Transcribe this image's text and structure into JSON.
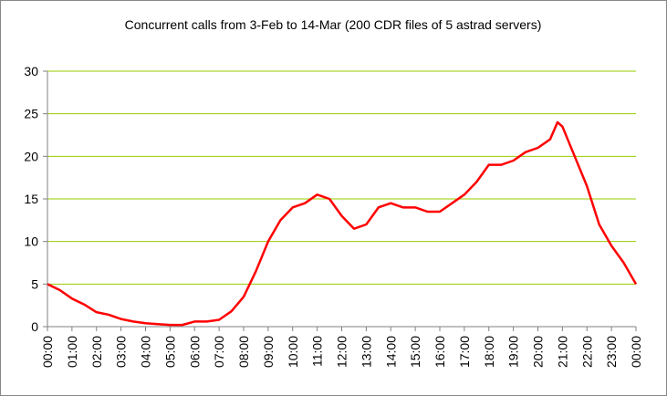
{
  "chart_data": {
    "type": "line",
    "title": "Concurrent calls from 3-Feb to 14-Mar (200 CDR files of 5 astrad servers)",
    "x": [
      0,
      0.5,
      1,
      1.5,
      2,
      2.5,
      3,
      3.5,
      4,
      4.5,
      5,
      5.5,
      6,
      6.5,
      7,
      7.5,
      8,
      8.5,
      9,
      9.5,
      10,
      10.5,
      11,
      11.5,
      12,
      12.5,
      13,
      13.5,
      14,
      14.5,
      15,
      15.5,
      16,
      16.5,
      17,
      17.5,
      18,
      18.5,
      19,
      19.5,
      20,
      20.5,
      20.8,
      21,
      21.5,
      22,
      22.5,
      23,
      23.5,
      24
    ],
    "series": [
      {
        "color": "#ff0000",
        "values": [
          5.0,
          4.3,
          3.3,
          2.6,
          1.7,
          1.4,
          0.9,
          0.6,
          0.4,
          0.3,
          0.2,
          0.2,
          0.6,
          0.6,
          0.8,
          1.8,
          3.5,
          6.5,
          10.0,
          12.5,
          14.0,
          14.5,
          15.5,
          15.0,
          13.0,
          11.5,
          12.0,
          14.0,
          14.5,
          14.0,
          14.0,
          13.5,
          13.5,
          14.5,
          15.5,
          17.0,
          19.0,
          19.0,
          19.5,
          20.5,
          21.0,
          22.0,
          24.0,
          23.5,
          20.0,
          16.5,
          12.0,
          9.5,
          7.5,
          5.0
        ]
      }
    ],
    "xlim": [
      0,
      24
    ],
    "xticks": [
      {
        "value": 0,
        "label": "00:00"
      },
      {
        "value": 1,
        "label": "01:00"
      },
      {
        "value": 2,
        "label": "02:00"
      },
      {
        "value": 3,
        "label": "03:00"
      },
      {
        "value": 4,
        "label": "04:00"
      },
      {
        "value": 5,
        "label": "05:00"
      },
      {
        "value": 6,
        "label": "06:00"
      },
      {
        "value": 7,
        "label": "07:00"
      },
      {
        "value": 8,
        "label": "08:00"
      },
      {
        "value": 9,
        "label": "09:00"
      },
      {
        "value": 10,
        "label": "10:00"
      },
      {
        "value": 11,
        "label": "11:00"
      },
      {
        "value": 12,
        "label": "12:00"
      },
      {
        "value": 13,
        "label": "13:00"
      },
      {
        "value": 14,
        "label": "14:00"
      },
      {
        "value": 15,
        "label": "15:00"
      },
      {
        "value": 16,
        "label": "16:00"
      },
      {
        "value": 17,
        "label": "17:00"
      },
      {
        "value": 18,
        "label": "18:00"
      },
      {
        "value": 19,
        "label": "19:00"
      },
      {
        "value": 20,
        "label": "20:00"
      },
      {
        "value": 21,
        "label": "21:00"
      },
      {
        "value": 22,
        "label": "22:00"
      },
      {
        "value": 23,
        "label": "23:00"
      },
      {
        "value": 24,
        "label": "00:00"
      }
    ],
    "ylim": [
      0,
      30
    ],
    "yticks": [
      0,
      5,
      10,
      15,
      20,
      25,
      30
    ],
    "grid": true,
    "grid_color": "#99cc00"
  }
}
